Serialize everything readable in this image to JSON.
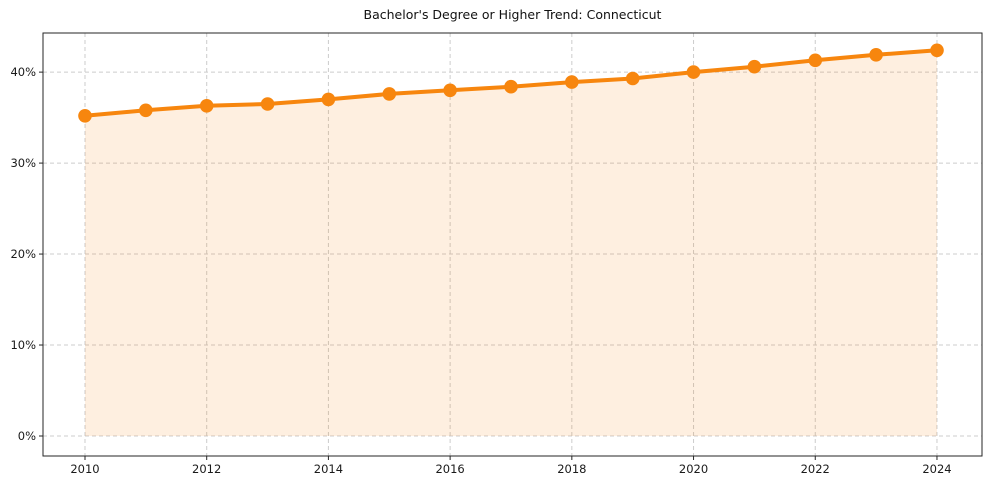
{
  "chart_data": {
    "type": "line",
    "title": "Bachelor's Degree or Higher Trend: Connecticut",
    "xlabel": "",
    "ylabel": "",
    "x": [
      2010,
      2011,
      2012,
      2013,
      2014,
      2015,
      2016,
      2017,
      2018,
      2019,
      2020,
      2021,
      2022,
      2023,
      2024
    ],
    "values": [
      35.2,
      35.8,
      36.3,
      36.5,
      37.0,
      37.6,
      38.0,
      38.4,
      38.9,
      39.3,
      40.0,
      40.6,
      41.3,
      41.9,
      42.4
    ],
    "unit": "%",
    "x_ticks": [
      2010,
      2012,
      2014,
      2016,
      2018,
      2020,
      2022,
      2024
    ],
    "x_tick_labels": [
      "2010",
      "2012",
      "2014",
      "2016",
      "2018",
      "2020",
      "2022",
      "2024"
    ],
    "y_ticks": [
      0,
      10,
      20,
      30,
      40
    ],
    "y_tick_labels": [
      "0%",
      "10%",
      "20%",
      "30%",
      "40%"
    ],
    "xlim": [
      2009.31,
      2024.74
    ],
    "ylim": [
      -2.2,
      44.3
    ],
    "grid": true,
    "grid_style": "dashed",
    "legend": false,
    "marker": "circle",
    "area_fill": true,
    "area_baseline": 0,
    "colors": {
      "line": "#f7860e",
      "marker": "#f7860e",
      "area": "rgba(247,134,14,0.13)",
      "grid": "#cccccc",
      "spine": "#262626",
      "tick_text": "#1a1a1a",
      "title_text": "#111111",
      "background": "#ffffff"
    }
  }
}
